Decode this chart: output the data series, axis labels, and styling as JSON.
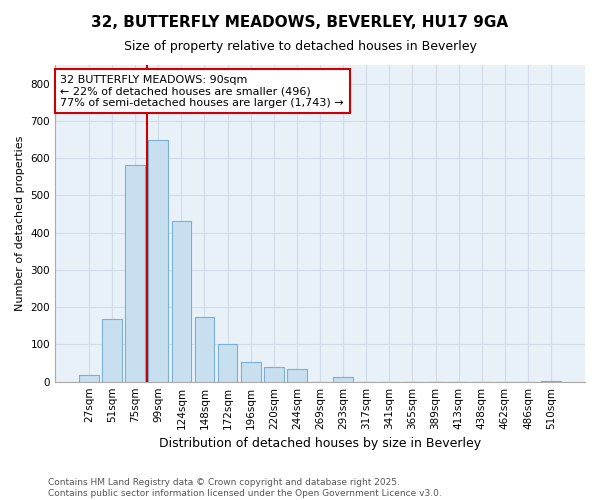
{
  "title1": "32, BUTTERFLY MEADOWS, BEVERLEY, HU17 9GA",
  "title2": "Size of property relative to detached houses in Beverley",
  "xlabel": "Distribution of detached houses by size in Beverley",
  "ylabel": "Number of detached properties",
  "categories": [
    "27sqm",
    "51sqm",
    "75sqm",
    "99sqm",
    "124sqm",
    "148sqm",
    "172sqm",
    "196sqm",
    "220sqm",
    "244sqm",
    "269sqm",
    "293sqm",
    "317sqm",
    "341sqm",
    "365sqm",
    "389sqm",
    "413sqm",
    "438sqm",
    "462sqm",
    "486sqm",
    "510sqm"
  ],
  "values": [
    18,
    168,
    582,
    648,
    432,
    173,
    102,
    52,
    40,
    33,
    0,
    12,
    0,
    0,
    0,
    0,
    0,
    0,
    0,
    0,
    3
  ],
  "bar_color": "#c8dff0",
  "bar_edge_color": "#7ab0d4",
  "red_line_index": 2.5,
  "annotation_text": "32 BUTTERFLY MEADOWS: 90sqm\n← 22% of detached houses are smaller (496)\n77% of semi-detached houses are larger (1,743) →",
  "annotation_box_facecolor": "#ffffff",
  "annotation_box_edgecolor": "#cc0000",
  "ylim": [
    0,
    850
  ],
  "yticks": [
    0,
    100,
    200,
    300,
    400,
    500,
    600,
    700,
    800
  ],
  "footnote": "Contains HM Land Registry data © Crown copyright and database right 2025.\nContains public sector information licensed under the Open Government Licence v3.0.",
  "grid_color": "#d0dde8",
  "plot_bg_color": "#e8f0f8",
  "fig_bg_color": "#ffffff",
  "title1_fontsize": 11,
  "title2_fontsize": 9,
  "xlabel_fontsize": 9,
  "ylabel_fontsize": 8,
  "tick_fontsize": 7.5,
  "annot_fontsize": 8,
  "footnote_fontsize": 6.5
}
